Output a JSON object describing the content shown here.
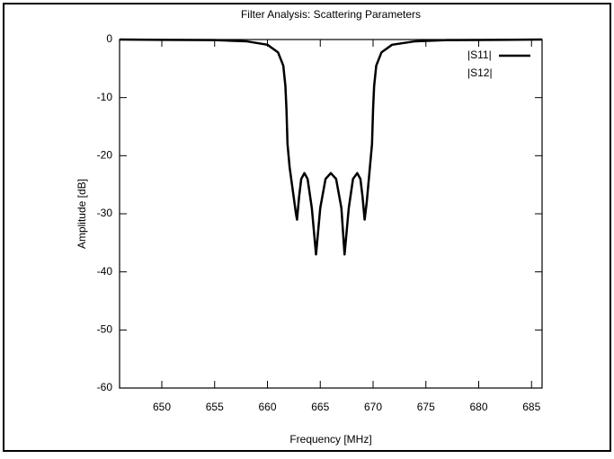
{
  "chart_data": {
    "type": "line",
    "title": "Filter Analysis: Scattering Parameters",
    "x_label": "Frequency [MHz]",
    "y_label": "Amplitude [dB]",
    "x": [
      646,
      650,
      655,
      658,
      660,
      661,
      661.5,
      661.7,
      661.8,
      661.9,
      662.1,
      662.4,
      662.7,
      662.8,
      663.0,
      663.2,
      663.5,
      663.8,
      664.2,
      664.6,
      665.0,
      665.5,
      666.0,
      666.5,
      667.0,
      667.3,
      667.7,
      668.1,
      668.5,
      668.8,
      669.0,
      669.2,
      669.4,
      669.7,
      669.9,
      670.0,
      670.1,
      670.3,
      670.8,
      671.8,
      674,
      677,
      682,
      686
    ],
    "series": [
      {
        "name": "|S11|",
        "color": "#000000",
        "values": [
          0,
          -0.05,
          -0.1,
          -0.3,
          -0.9,
          -2.2,
          -4.5,
          -8,
          -12,
          -18,
          -22,
          -26,
          -30,
          -31,
          -27,
          -24,
          -23,
          -24,
          -29,
          -37,
          -29,
          -24,
          -23,
          -24,
          -29,
          -37,
          -29,
          -24,
          -23,
          -24,
          -27,
          -31,
          -28,
          -22,
          -18,
          -12,
          -8,
          -4.5,
          -2.2,
          -0.9,
          -0.3,
          -0.1,
          -0.05,
          0
        ]
      },
      {
        "name": "|S12|",
        "values": [
          null,
          null,
          null,
          null,
          null,
          null,
          null,
          null,
          null,
          null,
          null,
          null,
          null,
          null,
          null,
          null,
          null,
          null,
          null,
          null,
          null,
          null,
          null,
          null,
          null,
          null,
          null,
          null,
          null,
          null,
          null,
          null,
          null,
          null,
          null,
          null,
          null,
          null,
          null,
          null,
          null,
          null,
          null,
          null
        ]
      }
    ],
    "xlim": [
      646,
      686
    ],
    "xticks": [
      650,
      655,
      660,
      665,
      670,
      675,
      680,
      685
    ],
    "ylim": [
      -60,
      0
    ],
    "yticks": [
      0,
      -10,
      -20,
      -30,
      -40,
      -50,
      -60
    ],
    "legend": "top-right"
  }
}
